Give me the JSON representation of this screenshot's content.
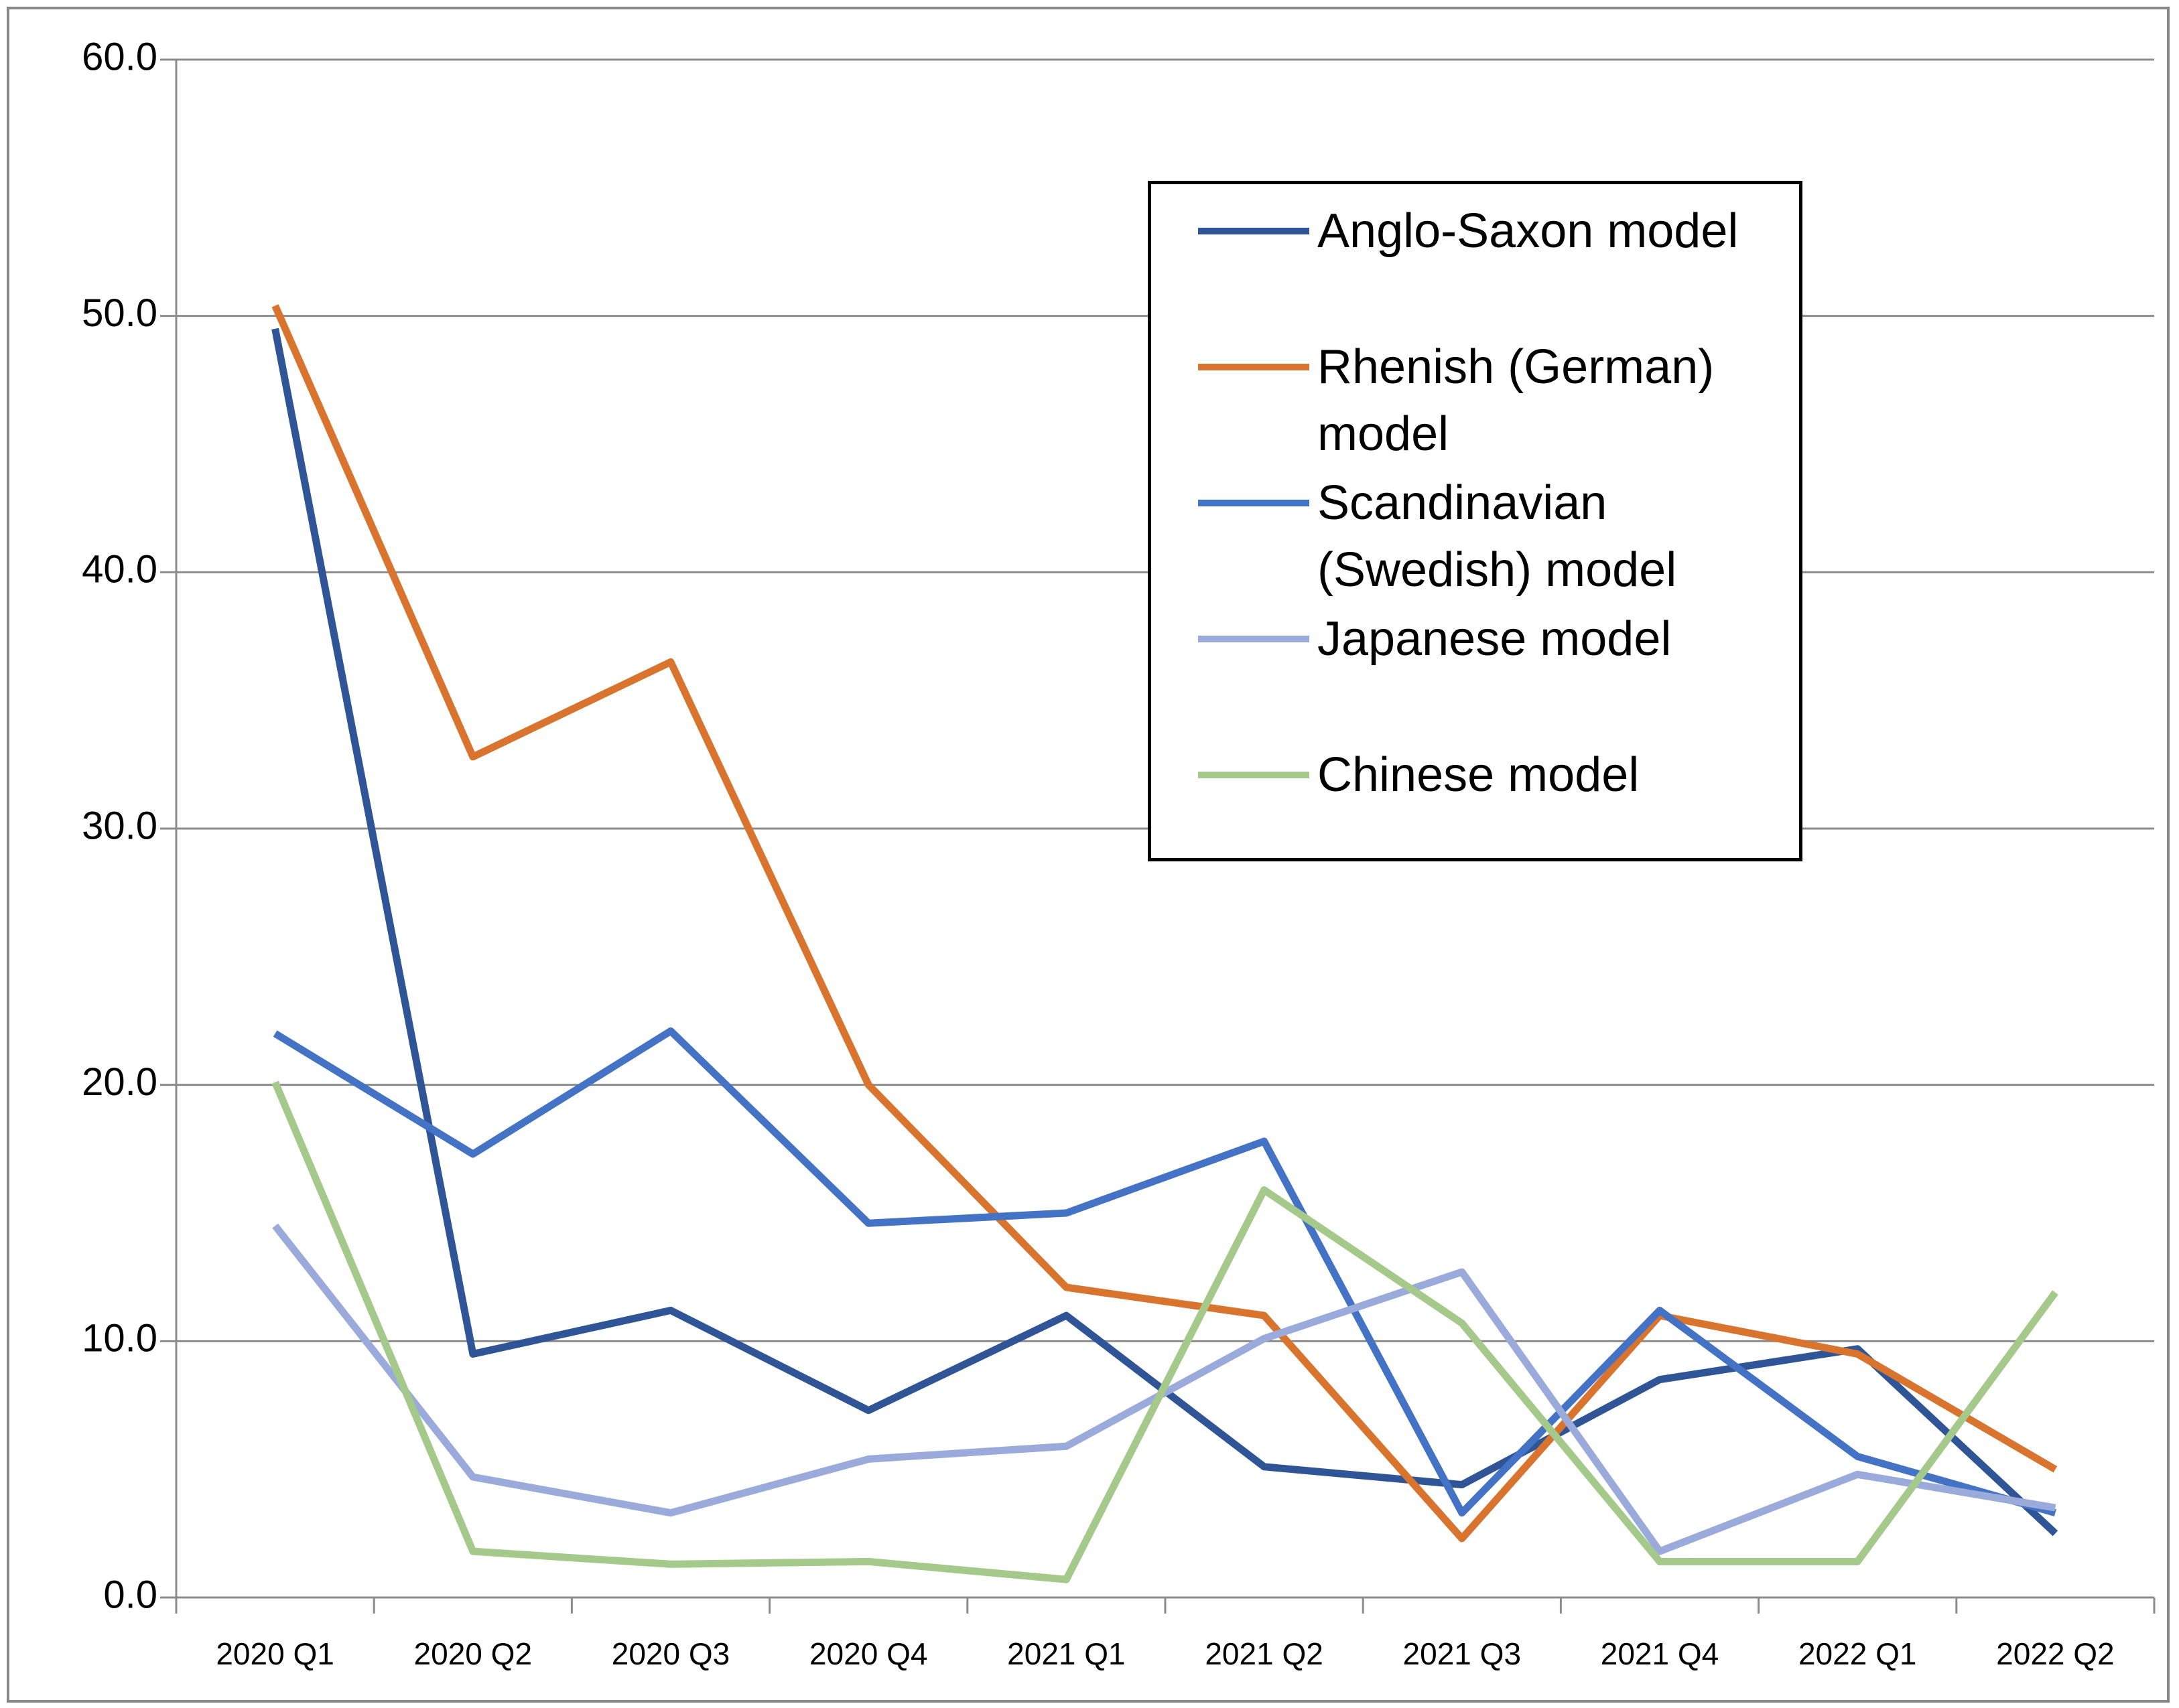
{
  "chart_data": {
    "type": "line",
    "categories": [
      "2020 Q1",
      "2020 Q2",
      "2020 Q3",
      "2020 Q4",
      "2021 Q1",
      "2021 Q2",
      "2021 Q3",
      "2021 Q4",
      "2022 Q1",
      "2022 Q2"
    ],
    "series": [
      {
        "name": "Anglo-Saxon model",
        "color": "#2f5597",
        "values": [
          49.5,
          9.5,
          11.2,
          7.3,
          11.0,
          5.1,
          4.4,
          8.5,
          9.7,
          2.5
        ]
      },
      {
        "name": "Rhenish (German) model",
        "color": "#d9742f",
        "values": [
          50.4,
          32.8,
          36.5,
          20.0,
          12.1,
          11.0,
          2.3,
          11.0,
          9.5,
          5.0
        ]
      },
      {
        "name": "Scandinavian (Swedish) model",
        "color": "#4472c4",
        "values": [
          22.0,
          17.3,
          22.1,
          14.6,
          15.0,
          17.8,
          3.3,
          11.2,
          5.5,
          3.3
        ]
      },
      {
        "name": "Japanese model",
        "color": "#9aabdb",
        "values": [
          14.5,
          4.7,
          3.3,
          5.4,
          5.9,
          10.1,
          12.7,
          1.8,
          4.8,
          3.5
        ]
      },
      {
        "name": "Chinese model",
        "color": "#a5c98a",
        "values": [
          20.1,
          1.8,
          1.3,
          1.4,
          0.7,
          15.9,
          10.7,
          1.4,
          1.4,
          11.9
        ]
      }
    ],
    "ylim": [
      0,
      60
    ],
    "yticks": [
      {
        "value": 0,
        "label": "0.0"
      },
      {
        "value": 10,
        "label": "10.0"
      },
      {
        "value": 20,
        "label": "20.0"
      },
      {
        "value": 30,
        "label": "30.0"
      },
      {
        "value": 40,
        "label": "40.0"
      },
      {
        "value": 50,
        "label": "50.0"
      },
      {
        "value": 60,
        "label": "60.0"
      }
    ],
    "grid": true
  }
}
